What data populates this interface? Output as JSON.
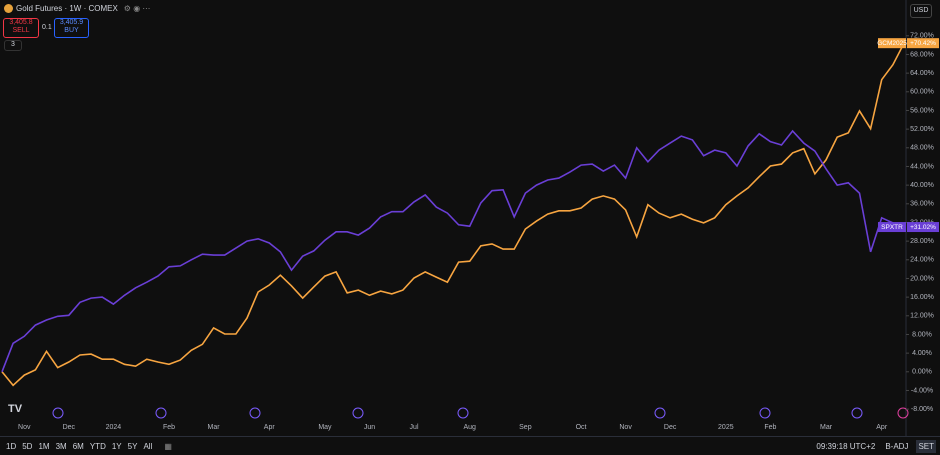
{
  "chart_data": {
    "type": "line",
    "categories": [
      null,
      null,
      "Nov",
      null,
      null,
      null,
      "Dec",
      null,
      null,
      null,
      "2024",
      null,
      null,
      null,
      null,
      "Feb",
      null,
      null,
      null,
      "Mar",
      null,
      null,
      null,
      null,
      "Apr",
      null,
      null,
      null,
      null,
      "May",
      null,
      null,
      null,
      "Jun",
      null,
      null,
      null,
      "Jul",
      null,
      null,
      null,
      null,
      "Aug",
      null,
      null,
      null,
      null,
      "Sep",
      null,
      null,
      null,
      null,
      "Oct",
      null,
      null,
      null,
      "Nov",
      null,
      null,
      null,
      "Dec",
      null,
      null,
      null,
      null,
      "2025",
      null,
      null,
      null,
      "Feb",
      null,
      null,
      null,
      null,
      "Mar",
      null,
      null,
      null,
      null,
      "Apr",
      null,
      null
    ],
    "series": [
      {
        "name": "GCM2025",
        "color": "#f7a541",
        "values": [
          0,
          -2.9,
          -0.7,
          0.4,
          4.4,
          0.9,
          2.1,
          3.6,
          3.8,
          2.7,
          2.7,
          1.6,
          1.2,
          2.7,
          2.1,
          1.6,
          2.5,
          4.6,
          5.9,
          9.4,
          8.1,
          8.1,
          11.5,
          17.1,
          18.6,
          20.7,
          18.4,
          15.8,
          18.2,
          20.5,
          21.4,
          16.9,
          17.5,
          16.4,
          17.3,
          16.7,
          17.5,
          20.1,
          21.4,
          20.3,
          19.2,
          23.5,
          23.7,
          27.0,
          27.4,
          26.3,
          26.3,
          30.6,
          32.3,
          33.8,
          34.5,
          34.5,
          35.1,
          37.0,
          37.7,
          37.0,
          34.7,
          28.9,
          35.8,
          34.0,
          33.0,
          33.8,
          32.7,
          31.9,
          33.0,
          35.8,
          37.7,
          39.4,
          41.8,
          44.1,
          44.5,
          46.9,
          47.8,
          42.4,
          45.4,
          50.3,
          51.2,
          55.9,
          52.1,
          62.6,
          65.8,
          70.42
        ],
        "value_labels": [
          null,
          null,
          null,
          null,
          null,
          null,
          null,
          null,
          null,
          null,
          null,
          null,
          null,
          null,
          null,
          null,
          null,
          null,
          null,
          null,
          null,
          null,
          null,
          null,
          null,
          null,
          null,
          null,
          null,
          null,
          null,
          null,
          null,
          null,
          null,
          null,
          null,
          null,
          null,
          null,
          null,
          null,
          null,
          null,
          null,
          null,
          null,
          null,
          null,
          null,
          null,
          null,
          null,
          null,
          null,
          null,
          null,
          null,
          null,
          null,
          null,
          null,
          null,
          null,
          null,
          null,
          null,
          null,
          null,
          null,
          null,
          null,
          null,
          null,
          null,
          null,
          null,
          null,
          null,
          null,
          null,
          "+70.42%"
        ]
      },
      {
        "name": "SPXTR",
        "color": "#6a3fd6",
        "values": [
          0,
          6.1,
          7.6,
          10.0,
          11.1,
          11.9,
          12.1,
          14.9,
          15.8,
          16.0,
          14.5,
          16.4,
          18.0,
          19.2,
          20.5,
          22.5,
          22.7,
          24.0,
          25.2,
          25.0,
          25.0,
          26.5,
          28.0,
          28.5,
          27.6,
          25.7,
          21.8,
          24.8,
          25.9,
          28.2,
          30.0,
          30.0,
          29.3,
          30.8,
          33.2,
          34.3,
          34.3,
          36.4,
          37.9,
          35.3,
          34.0,
          31.5,
          31.2,
          36.2,
          38.8,
          39.0,
          33.2,
          38.3,
          40.0,
          41.1,
          41.5,
          42.8,
          44.3,
          44.5,
          43.0,
          44.3,
          41.5,
          48.0,
          45.0,
          47.5,
          49.0,
          50.5,
          49.7,
          46.3,
          47.5,
          46.9,
          44.1,
          48.4,
          51.0,
          49.3,
          48.6,
          51.6,
          49.0,
          47.3,
          43.5,
          40.0,
          40.5,
          38.3,
          25.7,
          33.0,
          31.9,
          31.02
        ],
        "value_labels": [
          null,
          null,
          null,
          null,
          null,
          null,
          null,
          null,
          null,
          null,
          null,
          null,
          null,
          null,
          null,
          null,
          null,
          null,
          null,
          null,
          null,
          null,
          null,
          null,
          null,
          null,
          null,
          null,
          null,
          null,
          null,
          null,
          null,
          null,
          null,
          null,
          null,
          null,
          null,
          null,
          null,
          null,
          null,
          null,
          null,
          null,
          null,
          null,
          null,
          null,
          null,
          null,
          null,
          null,
          null,
          null,
          null,
          null,
          null,
          null,
          null,
          null,
          null,
          null,
          null,
          null,
          null,
          null,
          null,
          null,
          null,
          null,
          null,
          null,
          null,
          null,
          null,
          null,
          null,
          null,
          null,
          "+31.02%"
        ]
      }
    ],
    "ylim": [
      -11.4,
      78.6
    ],
    "yticks": [
      {
        "value": -8,
        "label": "-8.00%"
      },
      {
        "value": -4,
        "label": "-4.00%"
      },
      {
        "value": 0,
        "label": "0.00%"
      },
      {
        "value": 4,
        "label": "4.00%"
      },
      {
        "value": 8,
        "label": "8.00%"
      },
      {
        "value": 12,
        "label": "12.00%"
      },
      {
        "value": 16,
        "label": "16.00%"
      },
      {
        "value": 20,
        "label": "20.00%"
      },
      {
        "value": 24,
        "label": "24.00%"
      },
      {
        "value": 28,
        "label": "28.00%"
      },
      {
        "value": 32,
        "label": "32.00%"
      },
      {
        "value": 36,
        "label": "36.00%"
      },
      {
        "value": 40,
        "label": "40.00%"
      },
      {
        "value": 44,
        "label": "44.00%"
      },
      {
        "value": 48,
        "label": "48.00%"
      },
      {
        "value": 52,
        "label": "52.00%"
      },
      {
        "value": 56,
        "label": "56.00%"
      },
      {
        "value": 60,
        "label": "60.00%"
      },
      {
        "value": 64,
        "label": "64.00%"
      },
      {
        "value": 68,
        "label": "68.00%"
      },
      {
        "value": 72,
        "label": "72.00%"
      }
    ],
    "grid": false
  },
  "ui": {
    "symbol": "Gold Futures · 1W · COMEX",
    "sell_price": "3,405.8",
    "sell": "SELL",
    "spread": "0.1",
    "buy_price": "3,405.9",
    "buy": "BUY",
    "indicators": "3",
    "currency": "USD",
    "ranges": [
      "1D",
      "5D",
      "1M",
      "3M",
      "6M",
      "YTD",
      "1Y",
      "5Y",
      "All"
    ],
    "clock": "09:39:18 UTC+2",
    "adjust": "B-ADJ",
    "session": "SET"
  }
}
